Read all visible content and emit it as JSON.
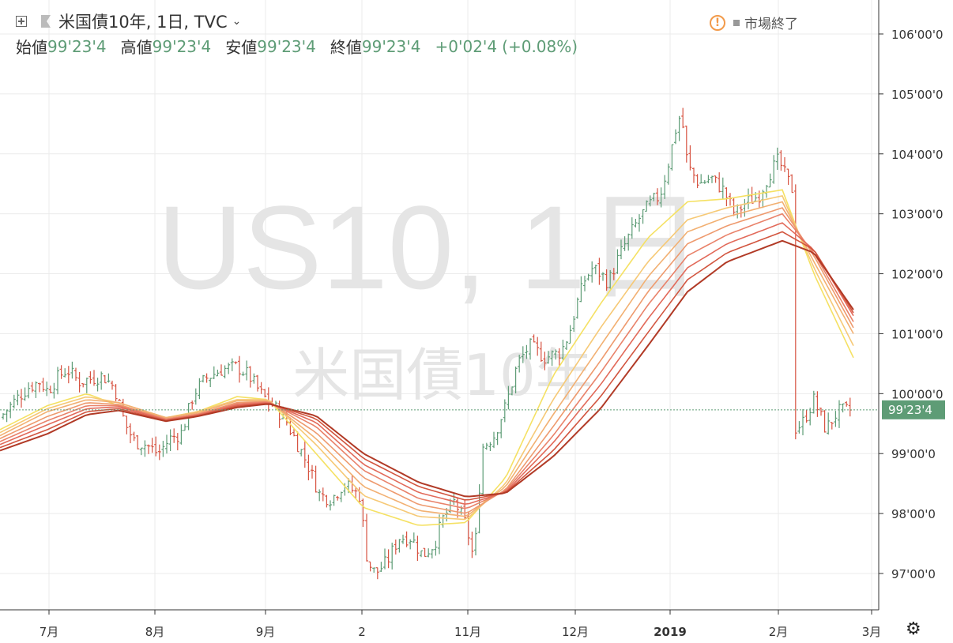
{
  "header": {
    "symbol_title": "米国債10年, 1日, TVC",
    "open_label": "始値",
    "open_value": "99'23'4",
    "high_label": "高値",
    "high_value": "99'23'4",
    "low_label": "安値",
    "low_value": "99'23'4",
    "close_label": "終値",
    "close_value": "99'23'4",
    "change": "+0'02'4",
    "change_pct": "(+0.08%)",
    "market_status": "市場終了"
  },
  "watermark": {
    "line1": "US10, 1日",
    "line2": "米国債10年"
  },
  "last_price_label": "99'23'4",
  "colors": {
    "up": "#5e9c76",
    "down": "#d75442",
    "grid": "#ebebeb",
    "price_badge": "#5e9c76",
    "ribbon": [
      "#f5e163",
      "#f6c976",
      "#f2b072",
      "#ee9a6e",
      "#e9826a",
      "#e26a5a",
      "#d2553f",
      "#b13a26"
    ]
  },
  "chart_data": {
    "type": "line",
    "description_units": "price in points; tick labels in 32nds format",
    "ylim": [
      96.5,
      106.7
    ],
    "y_ticks": [
      {
        "value": 97,
        "label": "97'00'0"
      },
      {
        "value": 98,
        "label": "98'00'0"
      },
      {
        "value": 99,
        "label": "99'00'0"
      },
      {
        "value": 100,
        "label": "100'00'0"
      },
      {
        "value": 101,
        "label": "101'00'0"
      },
      {
        "value": 102,
        "label": "102'00'0"
      },
      {
        "value": 103,
        "label": "103'00'0"
      },
      {
        "value": 104,
        "label": "104'00'0"
      },
      {
        "value": 105,
        "label": "105'00'0"
      },
      {
        "value": 106,
        "label": "106'00'0"
      }
    ],
    "x_ticks": [
      {
        "label": "7月",
        "bold": false
      },
      {
        "label": "8月",
        "bold": false
      },
      {
        "label": "9月",
        "bold": false
      },
      {
        "label": "2",
        "bold": false
      },
      {
        "label": "11月",
        "bold": false
      },
      {
        "label": "12月",
        "bold": false
      },
      {
        "label": "2019",
        "bold": true
      },
      {
        "label": "2月",
        "bold": false
      },
      {
        "label": "3月",
        "bold": false
      }
    ],
    "last_price": 99.73,
    "price_path": [
      [
        0,
        99.6
      ],
      [
        20,
        99.9
      ],
      [
        35,
        100.1
      ],
      [
        50,
        100.2
      ],
      [
        60,
        100.05
      ],
      [
        75,
        100.3
      ],
      [
        85,
        100.4
      ],
      [
        100,
        100.2
      ],
      [
        115,
        100.25
      ],
      [
        130,
        100.3
      ],
      [
        145,
        100.1
      ],
      [
        158,
        99.5
      ],
      [
        170,
        99.2
      ],
      [
        185,
        99.15
      ],
      [
        200,
        99.0
      ],
      [
        215,
        99.25
      ],
      [
        230,
        99.35
      ],
      [
        245,
        100.0
      ],
      [
        260,
        100.25
      ],
      [
        280,
        100.4
      ],
      [
        300,
        100.45
      ],
      [
        315,
        100.3
      ],
      [
        330,
        100.0
      ],
      [
        345,
        99.8
      ],
      [
        360,
        99.6
      ],
      [
        375,
        99.2
      ],
      [
        390,
        98.8
      ],
      [
        405,
        98.3
      ],
      [
        420,
        98.25
      ],
      [
        435,
        98.5
      ],
      [
        455,
        98.3
      ],
      [
        465,
        97.2
      ],
      [
        475,
        97.0
      ],
      [
        490,
        97.2
      ],
      [
        505,
        97.6
      ],
      [
        520,
        97.6
      ],
      [
        535,
        97.3
      ],
      [
        550,
        97.5
      ],
      [
        560,
        97.9
      ],
      [
        575,
        98.2
      ],
      [
        590,
        97.8
      ],
      [
        600,
        97.2
      ],
      [
        610,
        99.1
      ],
      [
        625,
        99.3
      ],
      [
        640,
        99.8
      ],
      [
        655,
        100.5
      ],
      [
        670,
        100.8
      ],
      [
        690,
        100.6
      ],
      [
        710,
        100.7
      ],
      [
        720,
        101.0
      ],
      [
        730,
        101.5
      ],
      [
        740,
        101.9
      ],
      [
        750,
        102.1
      ],
      [
        760,
        102.0
      ],
      [
        770,
        101.85
      ],
      [
        780,
        102.2
      ],
      [
        795,
        102.6
      ],
      [
        810,
        102.95
      ],
      [
        825,
        103.2
      ],
      [
        835,
        103.3
      ],
      [
        845,
        103.8
      ],
      [
        855,
        104.4
      ],
      [
        862,
        104.7
      ],
      [
        870,
        103.8
      ],
      [
        885,
        103.5
      ],
      [
        900,
        103.6
      ],
      [
        915,
        103.4
      ],
      [
        930,
        103.0
      ],
      [
        945,
        103.2
      ],
      [
        960,
        103.3
      ],
      [
        975,
        103.7
      ],
      [
        985,
        103.9
      ],
      [
        995,
        103.6
      ],
      [
        1003,
        103.4
      ],
      [
        1004,
        99.4
      ],
      [
        1015,
        99.5
      ],
      [
        1030,
        99.9
      ],
      [
        1045,
        99.4
      ],
      [
        1060,
        99.7
      ],
      [
        1080,
        99.73
      ]
    ],
    "ribbon_series": [
      {
        "values": [
          [
            0,
            99.4
          ],
          [
            60,
            99.8
          ],
          [
            110,
            100.0
          ],
          [
            150,
            99.8
          ],
          [
            210,
            99.6
          ],
          [
            250,
            99.7
          ],
          [
            300,
            99.95
          ],
          [
            340,
            99.9
          ],
          [
            400,
            99.0
          ],
          [
            460,
            98.1
          ],
          [
            530,
            97.8
          ],
          [
            590,
            97.85
          ],
          [
            640,
            98.6
          ],
          [
            700,
            100.3
          ],
          [
            760,
            101.5
          ],
          [
            820,
            102.6
          ],
          [
            870,
            103.2
          ],
          [
            920,
            103.25
          ],
          [
            990,
            103.4
          ],
          [
            1030,
            102.0
          ],
          [
            1080,
            100.6
          ]
        ]
      },
      {
        "values": [
          [
            0,
            99.35
          ],
          [
            60,
            99.75
          ],
          [
            110,
            99.95
          ],
          [
            150,
            99.85
          ],
          [
            210,
            99.6
          ],
          [
            250,
            99.7
          ],
          [
            300,
            99.9
          ],
          [
            340,
            99.9
          ],
          [
            400,
            99.15
          ],
          [
            460,
            98.3
          ],
          [
            530,
            97.95
          ],
          [
            590,
            97.9
          ],
          [
            640,
            98.5
          ],
          [
            700,
            99.9
          ],
          [
            760,
            101.1
          ],
          [
            820,
            102.2
          ],
          [
            870,
            102.9
          ],
          [
            920,
            103.1
          ],
          [
            990,
            103.3
          ],
          [
            1030,
            102.1
          ],
          [
            1080,
            100.8
          ]
        ]
      },
      {
        "values": [
          [
            0,
            99.3
          ],
          [
            60,
            99.7
          ],
          [
            110,
            99.9
          ],
          [
            150,
            99.85
          ],
          [
            210,
            99.6
          ],
          [
            250,
            99.68
          ],
          [
            300,
            99.88
          ],
          [
            340,
            99.88
          ],
          [
            400,
            99.25
          ],
          [
            460,
            98.45
          ],
          [
            530,
            98.05
          ],
          [
            590,
            97.95
          ],
          [
            640,
            98.45
          ],
          [
            700,
            99.65
          ],
          [
            760,
            100.8
          ],
          [
            820,
            101.95
          ],
          [
            870,
            102.7
          ],
          [
            920,
            102.95
          ],
          [
            990,
            103.2
          ],
          [
            1030,
            102.2
          ],
          [
            1080,
            101.0
          ]
        ]
      },
      {
        "values": [
          [
            0,
            99.25
          ],
          [
            60,
            99.62
          ],
          [
            110,
            99.85
          ],
          [
            150,
            99.82
          ],
          [
            210,
            99.58
          ],
          [
            250,
            99.66
          ],
          [
            300,
            99.85
          ],
          [
            340,
            99.87
          ],
          [
            400,
            99.35
          ],
          [
            460,
            98.6
          ],
          [
            530,
            98.15
          ],
          [
            590,
            98.0
          ],
          [
            640,
            98.4
          ],
          [
            700,
            99.45
          ],
          [
            760,
            100.55
          ],
          [
            820,
            101.7
          ],
          [
            870,
            102.5
          ],
          [
            920,
            102.8
          ],
          [
            990,
            103.1
          ],
          [
            1030,
            102.3
          ],
          [
            1080,
            101.1
          ]
        ]
      },
      {
        "values": [
          [
            0,
            99.2
          ],
          [
            60,
            99.55
          ],
          [
            110,
            99.8
          ],
          [
            150,
            99.8
          ],
          [
            210,
            99.57
          ],
          [
            250,
            99.65
          ],
          [
            300,
            99.83
          ],
          [
            340,
            99.86
          ],
          [
            400,
            99.45
          ],
          [
            460,
            98.72
          ],
          [
            530,
            98.25
          ],
          [
            590,
            98.08
          ],
          [
            640,
            98.38
          ],
          [
            700,
            99.3
          ],
          [
            760,
            100.35
          ],
          [
            820,
            101.48
          ],
          [
            870,
            102.3
          ],
          [
            920,
            102.65
          ],
          [
            990,
            103.0
          ],
          [
            1030,
            102.35
          ],
          [
            1080,
            101.2
          ]
        ]
      },
      {
        "values": [
          [
            0,
            99.15
          ],
          [
            60,
            99.48
          ],
          [
            110,
            99.75
          ],
          [
            150,
            99.78
          ],
          [
            210,
            99.56
          ],
          [
            250,
            99.64
          ],
          [
            300,
            99.81
          ],
          [
            340,
            99.85
          ],
          [
            400,
            99.52
          ],
          [
            460,
            98.82
          ],
          [
            530,
            98.35
          ],
          [
            590,
            98.15
          ],
          [
            640,
            98.36
          ],
          [
            700,
            99.18
          ],
          [
            760,
            100.15
          ],
          [
            820,
            101.25
          ],
          [
            870,
            102.1
          ],
          [
            920,
            102.5
          ],
          [
            990,
            102.85
          ],
          [
            1030,
            102.4
          ],
          [
            1080,
            101.3
          ]
        ]
      },
      {
        "values": [
          [
            0,
            99.1
          ],
          [
            60,
            99.4
          ],
          [
            110,
            99.7
          ],
          [
            150,
            99.75
          ],
          [
            210,
            99.55
          ],
          [
            250,
            99.63
          ],
          [
            300,
            99.79
          ],
          [
            340,
            99.84
          ],
          [
            400,
            99.58
          ],
          [
            460,
            98.92
          ],
          [
            530,
            98.45
          ],
          [
            590,
            98.22
          ],
          [
            640,
            98.35
          ],
          [
            700,
            99.05
          ],
          [
            760,
            99.95
          ],
          [
            820,
            101.02
          ],
          [
            870,
            101.9
          ],
          [
            920,
            102.35
          ],
          [
            990,
            102.7
          ],
          [
            1030,
            102.4
          ],
          [
            1080,
            101.35
          ]
        ]
      },
      {
        "values": [
          [
            0,
            99.05
          ],
          [
            60,
            99.33
          ],
          [
            110,
            99.65
          ],
          [
            150,
            99.72
          ],
          [
            210,
            99.54
          ],
          [
            250,
            99.62
          ],
          [
            300,
            99.77
          ],
          [
            340,
            99.83
          ],
          [
            400,
            99.63
          ],
          [
            460,
            99.0
          ],
          [
            530,
            98.52
          ],
          [
            590,
            98.28
          ],
          [
            640,
            98.34
          ],
          [
            700,
            98.95
          ],
          [
            760,
            99.75
          ],
          [
            820,
            100.8
          ],
          [
            870,
            101.7
          ],
          [
            920,
            102.2
          ],
          [
            990,
            102.55
          ],
          [
            1030,
            102.35
          ],
          [
            1080,
            101.4
          ]
        ]
      }
    ]
  }
}
